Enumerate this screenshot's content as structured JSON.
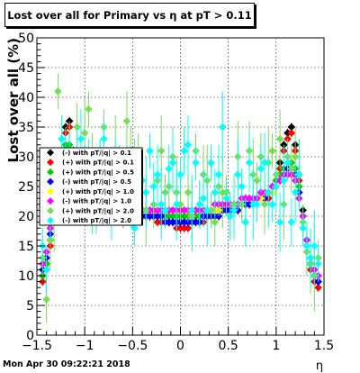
{
  "title": "Lost over all for Primary vs   η at pT > 0.11",
  "timestamp": "Mon Apr 30 09:22:21 2018",
  "chart_data": {
    "type": "scatter",
    "title": "Lost over all for Primary vs   η at pT > 0.11",
    "xlabel": "η",
    "ylabel": "Lost over all (%)",
    "xlim": [
      -1.5,
      1.5
    ],
    "ylim": [
      0,
      50
    ],
    "x_ticks": [
      "−1.5",
      "−1",
      "−0.5",
      "0",
      "0.5",
      "1",
      "1.5"
    ],
    "y_ticks": [
      "0",
      "5",
      "10",
      "15",
      "20",
      "25",
      "30",
      "35",
      "40",
      "45",
      "50"
    ],
    "grid": true,
    "legend_position": "upper-left",
    "x": [
      -1.44,
      -1.4,
      -1.36,
      -1.32,
      -1.28,
      -1.24,
      -1.2,
      -1.16,
      -1.12,
      -1.08,
      -1.04,
      -1.0,
      -0.96,
      -0.92,
      -0.88,
      -0.84,
      -0.8,
      -0.76,
      -0.72,
      -0.68,
      -0.64,
      -0.6,
      -0.56,
      -0.52,
      -0.48,
      -0.44,
      -0.4,
      -0.36,
      -0.32,
      -0.28,
      -0.24,
      -0.2,
      -0.16,
      -0.12,
      -0.08,
      -0.04,
      0.0,
      0.04,
      0.08,
      0.12,
      0.16,
      0.2,
      0.24,
      0.28,
      0.32,
      0.36,
      0.4,
      0.44,
      0.48,
      0.52,
      0.56,
      0.6,
      0.64,
      0.68,
      0.72,
      0.76,
      0.8,
      0.84,
      0.88,
      0.92,
      0.96,
      1.0,
      1.04,
      1.08,
      1.12,
      1.16,
      1.2,
      1.24,
      1.28,
      1.32,
      1.36,
      1.4,
      1.44
    ],
    "series": [
      {
        "name": "(-) with pT/|q| > 0.1",
        "color": "#000000",
        "values": [
          10,
          12,
          16,
          22,
          27,
          31,
          35,
          36,
          31,
          30,
          28,
          27,
          26,
          25,
          25,
          24,
          24,
          23,
          23,
          23,
          22,
          22,
          22,
          22,
          21,
          21,
          21,
          21,
          20,
          20,
          20,
          20,
          20,
          19,
          19,
          19,
          19,
          19,
          19,
          19,
          20,
          20,
          20,
          20,
          20,
          21,
          21,
          21,
          21,
          21,
          22,
          22,
          22,
          22,
          22,
          23,
          23,
          23,
          23,
          23,
          24,
          26,
          29,
          32,
          34,
          35,
          32,
          27,
          21,
          16,
          12,
          10,
          9
        ]
      },
      {
        "name": "(+) with pT/|q| > 0.1",
        "color": "#ff0000",
        "values": [
          9,
          11,
          15,
          21,
          26,
          30,
          34,
          35,
          30,
          29,
          27,
          26,
          25,
          25,
          24,
          24,
          23,
          23,
          22,
          22,
          22,
          21,
          21,
          21,
          21,
          20,
          20,
          20,
          20,
          20,
          19,
          19,
          19,
          19,
          19,
          18,
          18,
          18,
          18,
          19,
          19,
          19,
          19,
          20,
          20,
          20,
          20,
          21,
          21,
          21,
          21,
          22,
          22,
          22,
          22,
          22,
          23,
          23,
          23,
          23,
          24,
          25,
          28,
          31,
          33,
          34,
          31,
          26,
          20,
          15,
          11,
          9,
          8
        ]
      },
      {
        "name": "(+) with pT/|q| > 0.5",
        "color": "#00cc00",
        "values": [
          10,
          12,
          16,
          22,
          27,
          30,
          32,
          32,
          30,
          28,
          27,
          27,
          26,
          25,
          25,
          24,
          24,
          23,
          23,
          23,
          22,
          22,
          22,
          22,
          21,
          21,
          21,
          21,
          21,
          20,
          20,
          20,
          20,
          20,
          20,
          20,
          20,
          20,
          20,
          20,
          20,
          20,
          20,
          20,
          20,
          21,
          21,
          21,
          21,
          21,
          22,
          22,
          22,
          22,
          23,
          23,
          23,
          23,
          24,
          24,
          25,
          26,
          27,
          28,
          29,
          29,
          28,
          25,
          20,
          16,
          12,
          10,
          9
        ]
      },
      {
        "name": "(-) with pT/|q| > 0.5",
        "color": "#0000ff",
        "values": [
          11,
          13,
          17,
          22,
          26,
          29,
          30,
          30,
          28,
          27,
          26,
          25,
          25,
          24,
          24,
          23,
          23,
          22,
          22,
          22,
          22,
          21,
          21,
          21,
          21,
          21,
          20,
          20,
          20,
          20,
          20,
          20,
          19,
          19,
          19,
          19,
          19,
          19,
          19,
          19,
          19,
          19,
          20,
          20,
          20,
          20,
          20,
          21,
          21,
          21,
          21,
          21,
          22,
          22,
          22,
          22,
          23,
          23,
          23,
          24,
          24,
          25,
          26,
          27,
          28,
          28,
          27,
          24,
          20,
          16,
          12,
          10,
          9
        ]
      },
      {
        "name": "(+) with pT/|q| > 1.0",
        "color": "#ffff00",
        "values": [
          12,
          14,
          18,
          23,
          26,
          28,
          29,
          29,
          28,
          27,
          26,
          26,
          25,
          25,
          24,
          24,
          23,
          23,
          23,
          22,
          22,
          22,
          22,
          22,
          21,
          21,
          21,
          21,
          21,
          21,
          21,
          21,
          21,
          21,
          21,
          21,
          21,
          21,
          21,
          21,
          21,
          21,
          21,
          21,
          21,
          21,
          21,
          22,
          22,
          22,
          22,
          22,
          22,
          23,
          23,
          23,
          23,
          23,
          24,
          24,
          24,
          25,
          26,
          27,
          27,
          27,
          26,
          23,
          20,
          16,
          13,
          11,
          10
        ]
      },
      {
        "name": "(-) with pT/|q| > 1.0",
        "color": "#ff00ff",
        "values": [
          12,
          14,
          18,
          22,
          25,
          27,
          28,
          28,
          27,
          26,
          26,
          25,
          25,
          24,
          24,
          24,
          23,
          23,
          23,
          22,
          22,
          22,
          22,
          22,
          22,
          21,
          21,
          21,
          21,
          21,
          21,
          21,
          21,
          21,
          21,
          21,
          21,
          21,
          21,
          21,
          21,
          21,
          21,
          21,
          21,
          22,
          22,
          22,
          22,
          22,
          22,
          22,
          23,
          23,
          23,
          23,
          23,
          24,
          24,
          24,
          25,
          25,
          26,
          27,
          27,
          27,
          26,
          23,
          20,
          16,
          13,
          11,
          10
        ]
      },
      {
        "name": "(+) with pT/|q| > 2.0",
        "color": "#77dd55",
        "values": [
          13,
          6,
          16,
          20,
          41,
          33,
          27,
          30,
          26,
          35,
          28,
          34,
          38,
          30,
          22,
          27,
          35,
          23,
          25,
          31,
          28,
          22,
          36,
          29,
          30,
          30,
          26,
          21,
          31,
          22,
          26,
          31,
          24,
          25,
          30,
          24,
          22,
          31,
          24,
          20,
          31,
          22,
          27,
          26,
          21,
          19,
          25,
          24,
          24,
          20,
          22,
          30,
          22,
          19,
          31,
          27,
          26,
          30,
          22,
          29,
          31,
          27,
          33,
          22,
          30,
          28,
          30,
          27,
          19,
          14,
          12,
          10,
          13
        ]
      },
      {
        "name": "(-) with pT/|q| > 2.0",
        "color": "#00ffff",
        "values": [
          15,
          11,
          21,
          25,
          28,
          33,
          30,
          28,
          27,
          31,
          33,
          26,
          30,
          21,
          26,
          27,
          33,
          26,
          21,
          27,
          29,
          22,
          27,
          24,
          18,
          24,
          26,
          24,
          31,
          25,
          27,
          22,
          21,
          28,
          29,
          22,
          27,
          31,
          32,
          21,
          29,
          22,
          23,
          21,
          29,
          24,
          27,
          35,
          23,
          20,
          21,
          27,
          25,
          19,
          29,
          22,
          22,
          28,
          29,
          24,
          22,
          25,
          19,
          26,
          29,
          19,
          24,
          27,
          18,
          15,
          13,
          15,
          12
        ]
      }
    ]
  }
}
